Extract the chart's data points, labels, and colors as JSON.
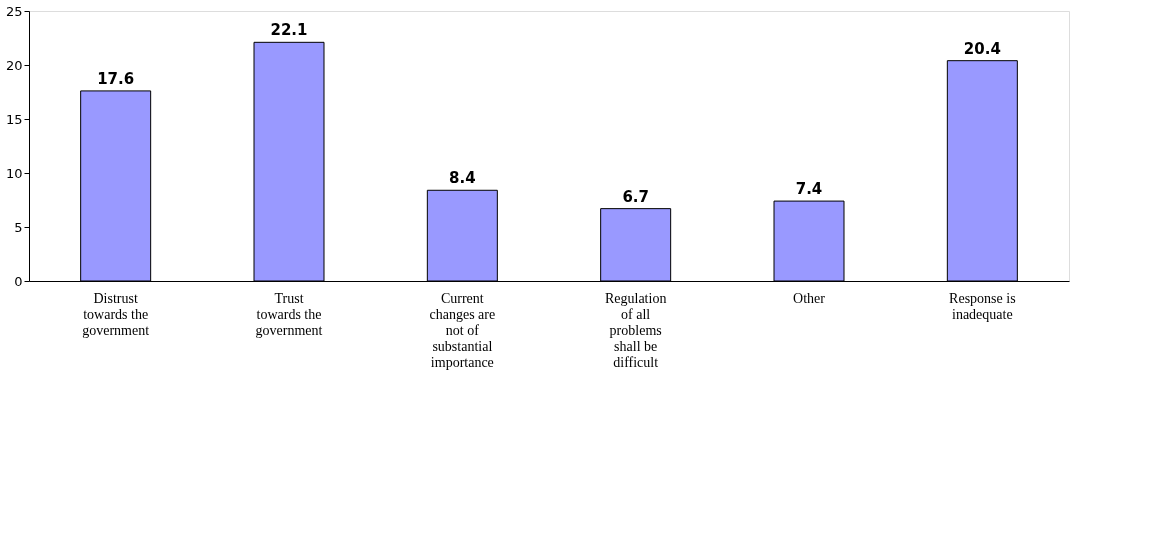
{
  "chart_data": {
    "type": "bar",
    "categories": [
      "Distrust towards the government",
      "Trust towards the government",
      "Current changes are not of substantial importance",
      "Regulation of all problems shall be difficult",
      "Other",
      "Response is inadequate"
    ],
    "values": [
      17.6,
      22.1,
      8.4,
      6.7,
      7.4,
      20.4
    ],
    "color": "#9999ff",
    "ylim": [
      0,
      25
    ],
    "yticks": [
      0,
      5,
      10,
      15,
      20,
      25
    ],
    "data_labels": true,
    "grid": false
  }
}
